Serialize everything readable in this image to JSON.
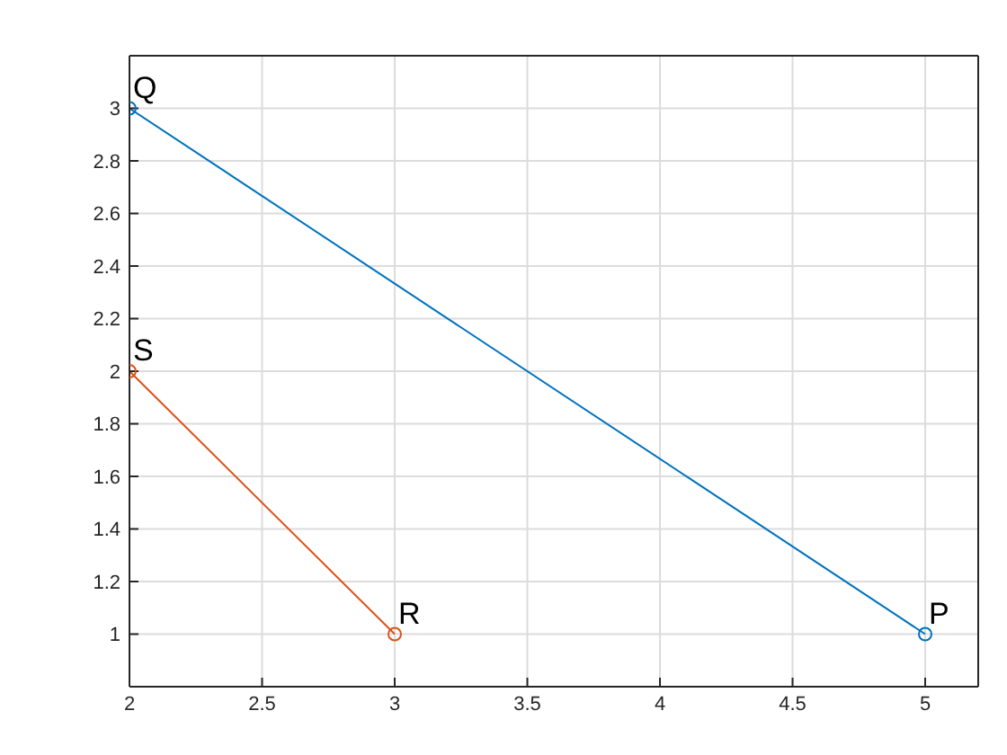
{
  "chart_data": {
    "type": "line",
    "xlim": [
      2,
      5.2
    ],
    "ylim": [
      0.8,
      3.2
    ],
    "xticks": [
      2,
      2.5,
      3,
      3.5,
      4,
      4.5,
      5
    ],
    "yticks": [
      1,
      1.2,
      1.4,
      1.6,
      1.8,
      2,
      2.2,
      2.4,
      2.6,
      2.8,
      3
    ],
    "grid": true,
    "marker": "circle",
    "line_style": "solid",
    "series": [
      {
        "color": "#0072bd",
        "x": [
          5,
          2
        ],
        "values": [
          1,
          3
        ]
      },
      {
        "color": "#d95319",
        "x": [
          3,
          2
        ],
        "values": [
          1,
          2
        ]
      }
    ],
    "annotations": [
      {
        "text": "P",
        "x": 5,
        "y": 1
      },
      {
        "text": "Q",
        "x": 2,
        "y": 3
      },
      {
        "text": "R",
        "x": 3,
        "y": 1
      },
      {
        "text": "S",
        "x": 2,
        "y": 2
      }
    ]
  }
}
